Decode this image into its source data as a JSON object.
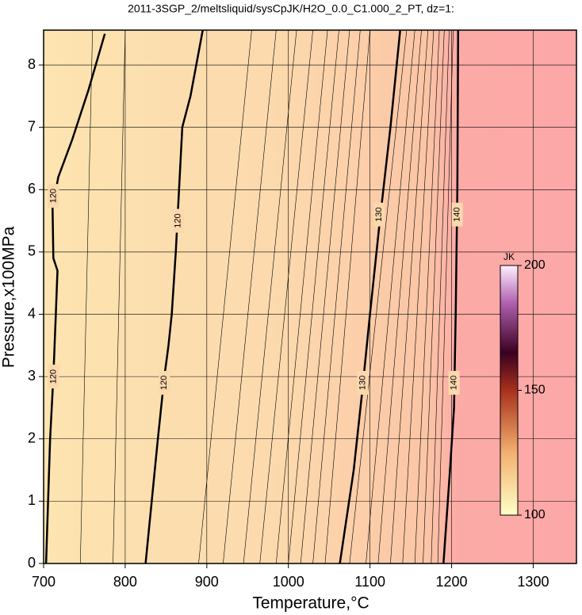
{
  "chart_data": {
    "type": "contour",
    "title": "2011-3SGP_2/meltsliquid/sysCpJK/H2O_0.0_C1.000_2_PT, dz=1:",
    "x_label": "Temperature,°C",
    "y_label": "Pressure,x100MPa",
    "xlim": [
      700,
      1353
    ],
    "ylim": [
      0,
      8.56
    ],
    "xticks": [
      700,
      800,
      900,
      1000,
      1100,
      1200,
      1300
    ],
    "yticks": [
      0,
      1,
      2,
      3,
      4,
      5,
      6,
      7,
      8
    ],
    "grid": true,
    "series": [
      {
        "level": 120,
        "x": [
          703,
          708,
          712,
          715,
          717,
          712,
          711,
          718,
          735,
          755,
          775
        ],
        "y": [
          0,
          2,
          3,
          4,
          4.7,
          4.9,
          5.7,
          6.2,
          6.8,
          7.6,
          8.5
        ],
        "labels": {
          "x": [
            712,
            712
          ],
          "y": [
            3,
            5.9
          ]
        }
      },
      {
        "level": 120,
        "x": [
          825,
          840,
          848,
          853,
          857,
          862,
          866,
          870,
          880,
          895
        ],
        "y": [
          0,
          2,
          3,
          3.5,
          4,
          5,
          6,
          7,
          7.5,
          8.56
        ],
        "labels": {
          "x": [
            848,
            865
          ],
          "y": [
            2.9,
            5.5
          ]
        }
      },
      {
        "level": 130,
        "x": [
          1063,
          1080,
          1090,
          1100,
          1112,
          1125,
          1137
        ],
        "y": [
          0,
          1.5,
          2.7,
          4,
          5.5,
          7,
          8.56
        ],
        "labels": {
          "x": [
            1091,
            1111
          ],
          "y": [
            2.9,
            5.6
          ]
        }
      },
      {
        "level": 140,
        "x": [
          1190,
          1198,
          1203,
          1205,
          1207,
          1208
        ],
        "y": [
          0,
          1.5,
          2.5,
          4,
          6,
          8.56
        ],
        "labels": {
          "x": [
            1203,
            1207
          ],
          "y": [
            2.9,
            5.6
          ]
        }
      }
    ],
    "minor_series": [
      {
        "x": [
          745,
          760
        ],
        "y": [
          0,
          8.56
        ]
      },
      {
        "x": [
          785,
          800
        ],
        "y": [
          0,
          8.56
        ]
      },
      {
        "x": [
          890,
          955
        ],
        "y": [
          0,
          8.56
        ]
      },
      {
        "x": [
          920,
          985
        ],
        "y": [
          0,
          8.56
        ]
      },
      {
        "x": [
          945,
          1010
        ],
        "y": [
          0,
          8.56
        ]
      },
      {
        "x": [
          965,
          1030
        ],
        "y": [
          0,
          8.56
        ]
      },
      {
        "x": [
          985,
          1048
        ],
        "y": [
          0,
          8.56
        ]
      },
      {
        "x": [
          1000,
          1062
        ],
        "y": [
          0,
          8.56
        ]
      },
      {
        "x": [
          1015,
          1075
        ],
        "y": [
          0,
          8.56
        ]
      },
      {
        "x": [
          1030,
          1088
        ],
        "y": [
          0,
          8.56
        ]
      },
      {
        "x": [
          1045,
          1100
        ],
        "y": [
          0,
          8.56
        ]
      },
      {
        "x": [
          1075,
          1145
        ],
        "y": [
          0,
          8.56
        ]
      },
      {
        "x": [
          1095,
          1155
        ],
        "y": [
          0,
          8.56
        ]
      },
      {
        "x": [
          1110,
          1163
        ],
        "y": [
          0,
          8.56
        ]
      },
      {
        "x": [
          1125,
          1171
        ],
        "y": [
          0,
          8.56
        ]
      },
      {
        "x": [
          1140,
          1178
        ],
        "y": [
          0,
          8.56
        ]
      },
      {
        "x": [
          1155,
          1185
        ],
        "y": [
          0,
          8.56
        ]
      },
      {
        "x": [
          1165,
          1191
        ],
        "y": [
          0,
          8.56
        ]
      },
      {
        "x": [
          1175,
          1197
        ],
        "y": [
          0,
          8.56
        ]
      },
      {
        "x": [
          1183,
          1202
        ],
        "y": [
          0,
          8.56
        ]
      }
    ],
    "colorbar": {
      "label": "JK",
      "clim": [
        100,
        200
      ],
      "ticks": [
        100,
        150,
        200
      ]
    }
  }
}
